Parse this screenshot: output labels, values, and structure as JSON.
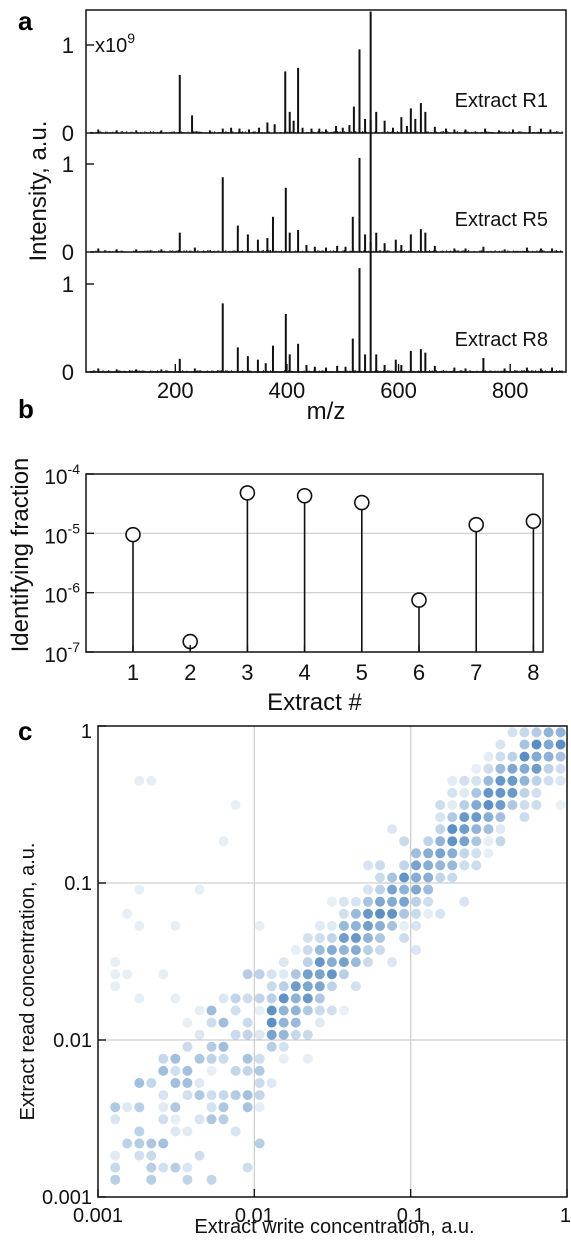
{
  "panels": {
    "a": "a",
    "b": "b",
    "c": "c"
  },
  "chart_data": [
    {
      "id": "a",
      "type": "line",
      "xlabel": "m/z",
      "ylabel": "Intensity, a.u.",
      "exponent_label": "x10",
      "exponent_power": "9",
      "xlim": [
        40,
        900
      ],
      "ylim": [
        0,
        1.4
      ],
      "xticks": [
        "200",
        "400",
        "600",
        "800"
      ],
      "yticks": [
        "0",
        "1"
      ],
      "series": [
        {
          "name": "Extract R1",
          "peaks": [
            [
              62,
              0.04
            ],
            [
              95,
              0.03
            ],
            [
              130,
              0.03
            ],
            [
              175,
              0.03
            ],
            [
              208,
              0.66
            ],
            [
              230,
              0.2
            ],
            [
              262,
              0.03
            ],
            [
              285,
              0.05
            ],
            [
              300,
              0.06
            ],
            [
              315,
              0.05
            ],
            [
              332,
              0.04
            ],
            [
              350,
              0.06
            ],
            [
              365,
              0.12
            ],
            [
              378,
              0.1
            ],
            [
              397,
              0.7
            ],
            [
              405,
              0.24
            ],
            [
              412,
              0.14
            ],
            [
              420,
              0.74
            ],
            [
              428,
              0.06
            ],
            [
              444,
              0.05
            ],
            [
              458,
              0.05
            ],
            [
              470,
              0.04
            ],
            [
              488,
              0.08
            ],
            [
              500,
              0.06
            ],
            [
              512,
              0.09
            ],
            [
              520,
              0.3
            ],
            [
              530,
              0.95
            ],
            [
              540,
              0.16
            ],
            [
              550,
              1.38
            ],
            [
              560,
              0.24
            ],
            [
              575,
              0.14
            ],
            [
              590,
              0.06
            ],
            [
              605,
              0.18
            ],
            [
              615,
              0.08
            ],
            [
              622,
              0.28
            ],
            [
              630,
              0.16
            ],
            [
              640,
              0.34
            ],
            [
              648,
              0.24
            ],
            [
              665,
              0.07
            ],
            [
              685,
              0.05
            ],
            [
              700,
              0.04
            ],
            [
              720,
              0.04
            ],
            [
              755,
              0.05
            ],
            [
              780,
              0.03
            ],
            [
              805,
              0.04
            ],
            [
              835,
              0.08
            ],
            [
              855,
              0.05
            ],
            [
              872,
              0.04
            ]
          ]
        },
        {
          "name": "Extract R5",
          "peaks": [
            [
              62,
              0.04
            ],
            [
              95,
              0.03
            ],
            [
              130,
              0.03
            ],
            [
              175,
              0.03
            ],
            [
              208,
              0.22
            ],
            [
              235,
              0.05
            ],
            [
              285,
              0.85
            ],
            [
              312,
              0.3
            ],
            [
              330,
              0.2
            ],
            [
              348,
              0.14
            ],
            [
              365,
              0.16
            ],
            [
              375,
              0.4
            ],
            [
              398,
              0.73
            ],
            [
              405,
              0.22
            ],
            [
              420,
              0.25
            ],
            [
              435,
              0.08
            ],
            [
              450,
              0.06
            ],
            [
              470,
              0.05
            ],
            [
              490,
              0.07
            ],
            [
              505,
              0.06
            ],
            [
              518,
              0.4
            ],
            [
              530,
              1.07
            ],
            [
              540,
              0.2
            ],
            [
              550,
              1.5
            ],
            [
              560,
              0.22
            ],
            [
              575,
              0.1
            ],
            [
              595,
              0.14
            ],
            [
              605,
              0.08
            ],
            [
              622,
              0.2
            ],
            [
              640,
              0.26
            ],
            [
              648,
              0.22
            ],
            [
              665,
              0.07
            ],
            [
              700,
              0.04
            ],
            [
              720,
              0.04
            ],
            [
              752,
              0.06
            ],
            [
              790,
              0.03
            ],
            [
              830,
              0.05
            ],
            [
              855,
              0.04
            ],
            [
              875,
              0.04
            ]
          ]
        },
        {
          "name": "Extract R8",
          "peaks": [
            [
              62,
              0.04
            ],
            [
              95,
              0.03
            ],
            [
              130,
              0.03
            ],
            [
              175,
              0.03
            ],
            [
              208,
              0.15
            ],
            [
              235,
              0.04
            ],
            [
              285,
              0.78
            ],
            [
              312,
              0.28
            ],
            [
              330,
              0.18
            ],
            [
              348,
              0.14
            ],
            [
              362,
              0.1
            ],
            [
              375,
              0.3
            ],
            [
              398,
              0.66
            ],
            [
              405,
              0.2
            ],
            [
              420,
              0.32
            ],
            [
              435,
              0.08
            ],
            [
              450,
              0.06
            ],
            [
              470,
              0.05
            ],
            [
              490,
              0.07
            ],
            [
              505,
              0.06
            ],
            [
              518,
              0.38
            ],
            [
              530,
              1.18
            ],
            [
              540,
              0.2
            ],
            [
              550,
              1.48
            ],
            [
              560,
              0.2
            ],
            [
              575,
              0.08
            ],
            [
              595,
              0.14
            ],
            [
              605,
              0.08
            ],
            [
              622,
              0.24
            ],
            [
              640,
              0.26
            ],
            [
              648,
              0.22
            ],
            [
              665,
              0.07
            ],
            [
              700,
              0.05
            ],
            [
              720,
              0.04
            ],
            [
              752,
              0.16
            ],
            [
              790,
              0.04
            ],
            [
              830,
              0.05
            ],
            [
              855,
              0.04
            ],
            [
              875,
              0.05
            ]
          ]
        }
      ]
    },
    {
      "id": "b",
      "type": "scatter",
      "xlabel": "Extract #",
      "ylabel": "Identifying fraction",
      "y_scale": "log",
      "ylim": [
        1e-07,
        0.0001
      ],
      "yticks": [
        {
          "base": "10",
          "exp": "-7"
        },
        {
          "base": "10",
          "exp": "-6"
        },
        {
          "base": "10",
          "exp": "-5"
        },
        {
          "base": "10",
          "exp": "-4"
        }
      ],
      "categories": [
        "1",
        "2",
        "3",
        "4",
        "5",
        "6",
        "7",
        "8"
      ],
      "values": [
        9.5e-06,
        1.5e-07,
        4.8e-05,
        4.3e-05,
        3.3e-05,
        7.5e-07,
        1.4e-05,
        1.6e-05
      ],
      "grid": true,
      "marker": "open-circle-stem"
    },
    {
      "id": "c",
      "type": "scatter",
      "xlabel": "Extract write concentration, a.u.",
      "ylabel": "Extract read concentration, a.u.",
      "x_scale": "log",
      "y_scale": "log",
      "xlim": [
        0.001,
        1
      ],
      "ylim": [
        0.001,
        1
      ],
      "xticks": [
        "0.001",
        "0.01",
        "0.1",
        "1"
      ],
      "yticks": [
        "0.001",
        "0.01",
        "0.1",
        "1"
      ],
      "grid": true,
      "color": "#3d7ab8",
      "points_note": "grid-binned points, alpha = density"
    }
  ]
}
